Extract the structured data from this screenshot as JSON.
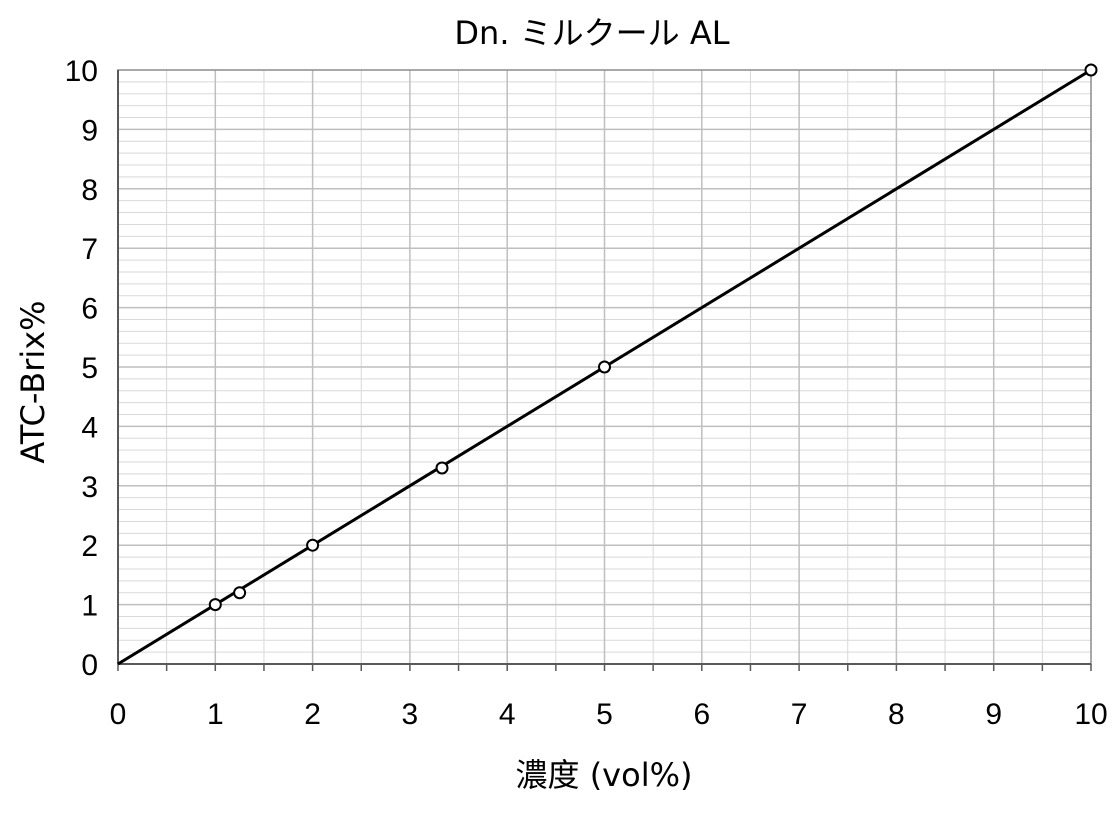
{
  "chart_data": {
    "type": "scatter",
    "title": "Dn. ミルクール AL",
    "xlabel": "濃度 (vol%)",
    "ylabel": "ATC-Brix%",
    "xlim": [
      0,
      10
    ],
    "ylim": [
      0,
      10
    ],
    "x_ticks": [
      "0",
      "1",
      "2",
      "3",
      "4",
      "5",
      "6",
      "7",
      "8",
      "9",
      "10"
    ],
    "y_ticks": [
      "0",
      "1",
      "2",
      "3",
      "4",
      "5",
      "6",
      "7",
      "8",
      "9",
      "10"
    ],
    "grid": true,
    "legend": "none",
    "series": [
      {
        "marker": "open-circle",
        "x": [
          1,
          1.25,
          2,
          3.33,
          5,
          10
        ],
        "y": [
          1,
          1.2,
          2,
          3.3,
          5,
          10
        ]
      }
    ],
    "trendline": {
      "x": [
        0,
        10
      ],
      "y": [
        0,
        10
      ]
    },
    "colors": {
      "line": "#000000",
      "grid_major": "#bfbfbf",
      "grid_minor": "#d9d9d9"
    }
  }
}
